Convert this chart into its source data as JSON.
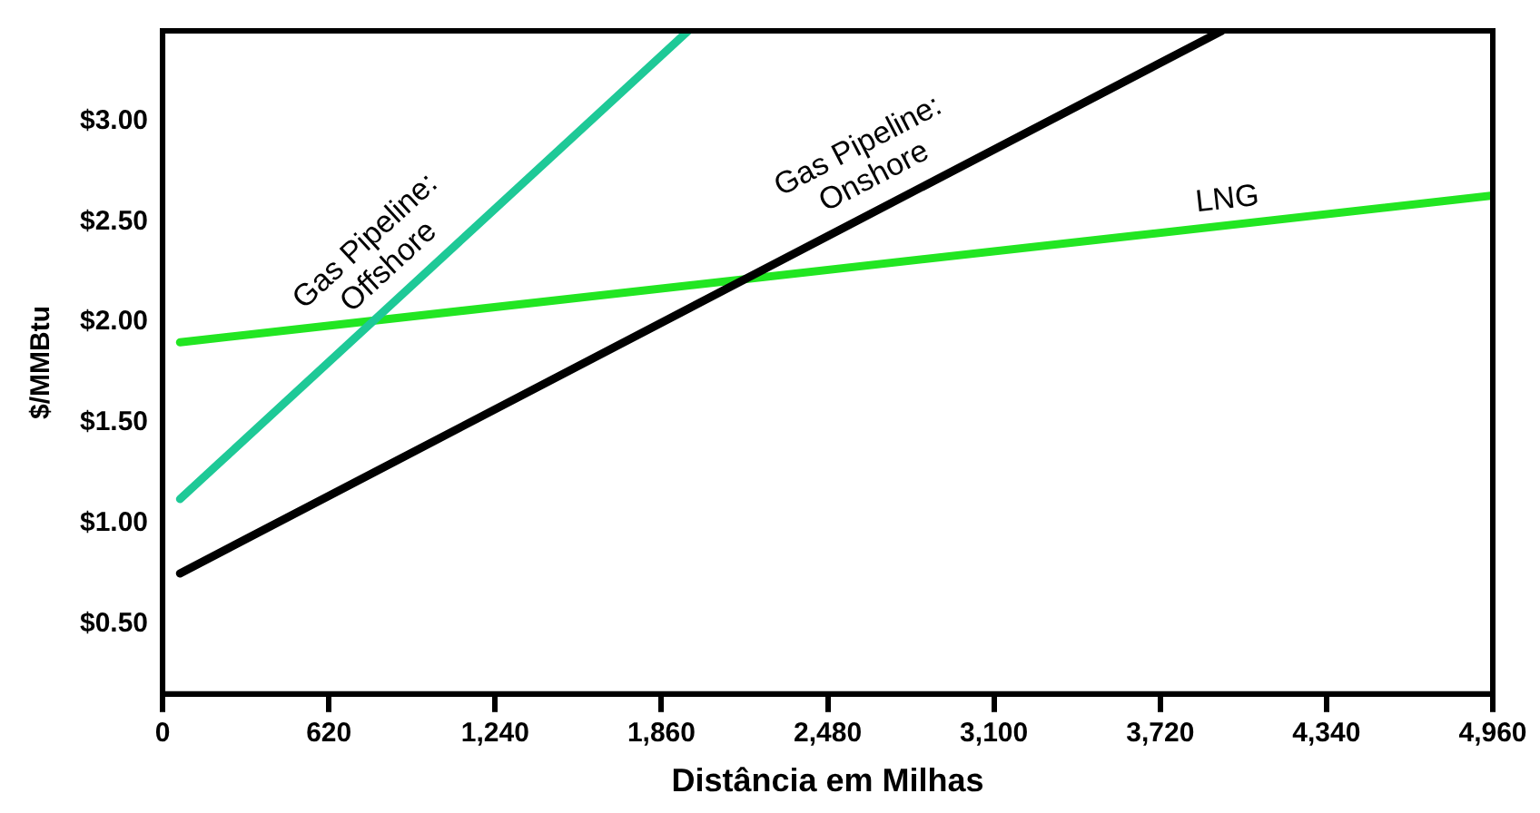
{
  "chart_data": {
    "type": "line",
    "xlabel": "Distância em Milhas",
    "ylabel": "$/MMBtu",
    "xlim": [
      0,
      4960
    ],
    "ylim": [
      0.15,
      3.45
    ],
    "xticks": [
      0,
      620,
      {
        "value": 1240,
        "label": "1,240"
      },
      {
        "value": 1860,
        "label": "1,860"
      },
      {
        "value": 2480,
        "label": "2,480"
      },
      {
        "value": 3100,
        "label": "3,100"
      },
      {
        "value": 3720,
        "label": "3,720"
      },
      {
        "value": 4340,
        "label": "4,340"
      },
      {
        "value": 4960,
        "label": "4,960"
      }
    ],
    "yticks": [
      {
        "value": 0.5,
        "label": "$0.50"
      },
      {
        "value": 1,
        "label": "$1.00"
      },
      {
        "value": 1.5,
        "label": "$1.50"
      },
      {
        "value": 2,
        "label": "$2.00"
      },
      {
        "value": 2.5,
        "label": "$2.50"
      },
      {
        "value": 3,
        "label": "$3.00"
      }
    ],
    "grid": false,
    "legend": false,
    "marker": "none",
    "line_style": "solid",
    "series": [
      {
        "name": "Gas Pipeline: Offshore",
        "color": "#1ec997",
        "x": [
          65,
          1960
        ],
        "values": [
          1.12,
          3.45
        ]
      },
      {
        "name": "Gas Pipeline: Onshore",
        "color": "#000000",
        "x": [
          65,
          3950
        ],
        "values": [
          0.75,
          3.45
        ]
      },
      {
        "name": "LNG",
        "color": "#22e622",
        "x": [
          65,
          4960
        ],
        "values": [
          1.9,
          2.63
        ]
      }
    ]
  }
}
